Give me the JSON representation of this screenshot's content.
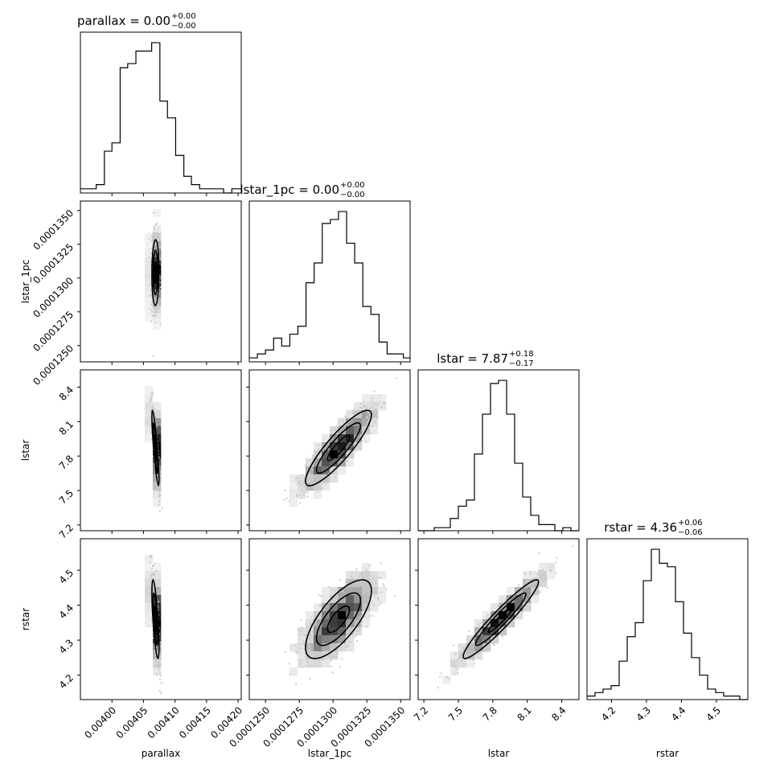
{
  "chart_data": {
    "type": "corner",
    "parameters": [
      "parallax",
      "lstar_1pc",
      "lstar",
      "rstar"
    ],
    "axis_labels": [
      "parallax",
      "lstar_1pc",
      "lstar",
      "rstar"
    ],
    "titles": [
      {
        "lhs": "parallax = 0.00",
        "sup": "+0.00",
        "sub": "−0.00"
      },
      {
        "lhs": "lstar_1pc = 0.00",
        "sup": "+0.00",
        "sub": "−0.00"
      },
      {
        "lhs": "lstar = 7.87",
        "sup": "+0.18",
        "sub": "−0.17"
      },
      {
        "lhs": "rstar = 4.36",
        "sup": "+0.06",
        "sub": "−0.06"
      }
    ],
    "ranges": [
      [
        0.00395,
        0.004205
      ],
      [
        0.0001238,
        0.0001357
      ],
      [
        7.15,
        8.55
      ],
      [
        4.13,
        4.59
      ]
    ],
    "ticks": [
      [
        0.004,
        0.00405,
        0.0041,
        0.00415,
        0.0042
      ],
      [
        0.000125,
        0.0001275,
        0.00013,
        0.0001325,
        0.000135
      ],
      [
        7.2,
        7.5,
        7.8,
        8.1,
        8.4
      ],
      [
        4.2,
        4.3,
        4.4,
        4.5
      ]
    ],
    "tick_labels": [
      [
        "0.00400",
        "0.00405",
        "0.00410",
        "0.00415",
        "0.00420"
      ],
      [
        "0.0001250",
        "0.0001275",
        "0.0001300",
        "0.0001325",
        "0.0001350"
      ],
      [
        "7.2",
        "7.5",
        "7.8",
        "8.1",
        "8.4"
      ],
      [
        "4.2",
        "4.3",
        "4.4",
        "4.5"
      ]
    ],
    "histograms": [
      {
        "param": "parallax",
        "edges": [
          0.00395,
          0.003963,
          0.003975,
          0.003988,
          0.004,
          0.004013,
          0.004025,
          0.004038,
          0.00405,
          0.004063,
          0.004076,
          0.004088,
          0.004101,
          0.004114,
          0.004126,
          0.004139,
          0.004152,
          0.004164,
          0.004177,
          0.00419,
          0.004205
        ],
        "counts": [
          1,
          1,
          2,
          10,
          12,
          30,
          31,
          34,
          34,
          36,
          22,
          18,
          9,
          4,
          2,
          1,
          1,
          1,
          0,
          1
        ]
      },
      {
        "param": "lstar_1pc",
        "edges": [
          0.0001238,
          0.0001244,
          0.000125,
          0.0001256,
          0.0001262,
          0.0001268,
          0.0001274,
          0.000128,
          0.0001286,
          0.0001292,
          0.0001298,
          0.0001304,
          0.000131,
          0.0001316,
          0.0001322,
          0.0001328,
          0.0001334,
          0.000134,
          0.0001346,
          0.0001352,
          0.0001357
        ],
        "counts": [
          1,
          2,
          3,
          6,
          4,
          7,
          9,
          20,
          25,
          35,
          36,
          38,
          30,
          25,
          14,
          12,
          5,
          2,
          2,
          1
        ]
      },
      {
        "param": "lstar",
        "edges": [
          7.15,
          7.22,
          7.29,
          7.36,
          7.43,
          7.5,
          7.57,
          7.64,
          7.71,
          7.78,
          7.85,
          7.92,
          7.99,
          8.06,
          8.13,
          8.2,
          8.27,
          8.34,
          8.41,
          8.48,
          8.55
        ],
        "counts": [
          0,
          0,
          1,
          1,
          4,
          8,
          10,
          25,
          38,
          48,
          49,
          38,
          22,
          11,
          5,
          2,
          2,
          0,
          1,
          0
        ]
      },
      {
        "param": "rstar",
        "edges": [
          4.13,
          4.153,
          4.176,
          4.199,
          4.222,
          4.245,
          4.268,
          4.291,
          4.314,
          4.337,
          4.36,
          4.383,
          4.406,
          4.429,
          4.452,
          4.475,
          4.498,
          4.521,
          4.544,
          4.567,
          4.59
        ],
        "counts": [
          1,
          2,
          3,
          4,
          11,
          18,
          22,
          34,
          43,
          39,
          38,
          28,
          19,
          12,
          7,
          3,
          2,
          1,
          1,
          0
        ]
      }
    ],
    "joint": [
      {
        "x": "parallax",
        "y": "lstar_1pc",
        "corr": 0.05,
        "mean": [
          0.004069,
          0.0001304
        ],
        "sd": [
          3e-06,
          1.3e-06
        ]
      },
      {
        "x": "parallax",
        "y": "lstar",
        "corr": -0.85,
        "mean": [
          0.004069,
          7.87
        ],
        "sd": [
          3e-06,
          0.175
        ]
      },
      {
        "x": "lstar_1pc",
        "y": "lstar",
        "corr": 0.88,
        "mean": [
          0.0001304,
          7.87
        ],
        "sd": [
          1.3e-06,
          0.175
        ]
      },
      {
        "x": "parallax",
        "y": "rstar",
        "corr": -0.7,
        "mean": [
          0.004069,
          4.36
        ],
        "sd": [
          3e-06,
          0.06
        ]
      },
      {
        "x": "lstar_1pc",
        "y": "rstar",
        "corr": 0.72,
        "mean": [
          0.0001304,
          4.36
        ],
        "sd": [
          1.3e-06,
          0.06
        ]
      },
      {
        "x": "lstar",
        "y": "rstar",
        "corr": 0.95,
        "mean": [
          7.87,
          4.36
        ],
        "sd": [
          0.175,
          0.06
        ]
      }
    ],
    "contour_levels_sigma": [
      0.5,
      1.0,
      1.5
    ],
    "grid": false,
    "colors": {
      "axes": "#000000",
      "points": "#c8c8c8",
      "density_dark": "#000000"
    }
  }
}
